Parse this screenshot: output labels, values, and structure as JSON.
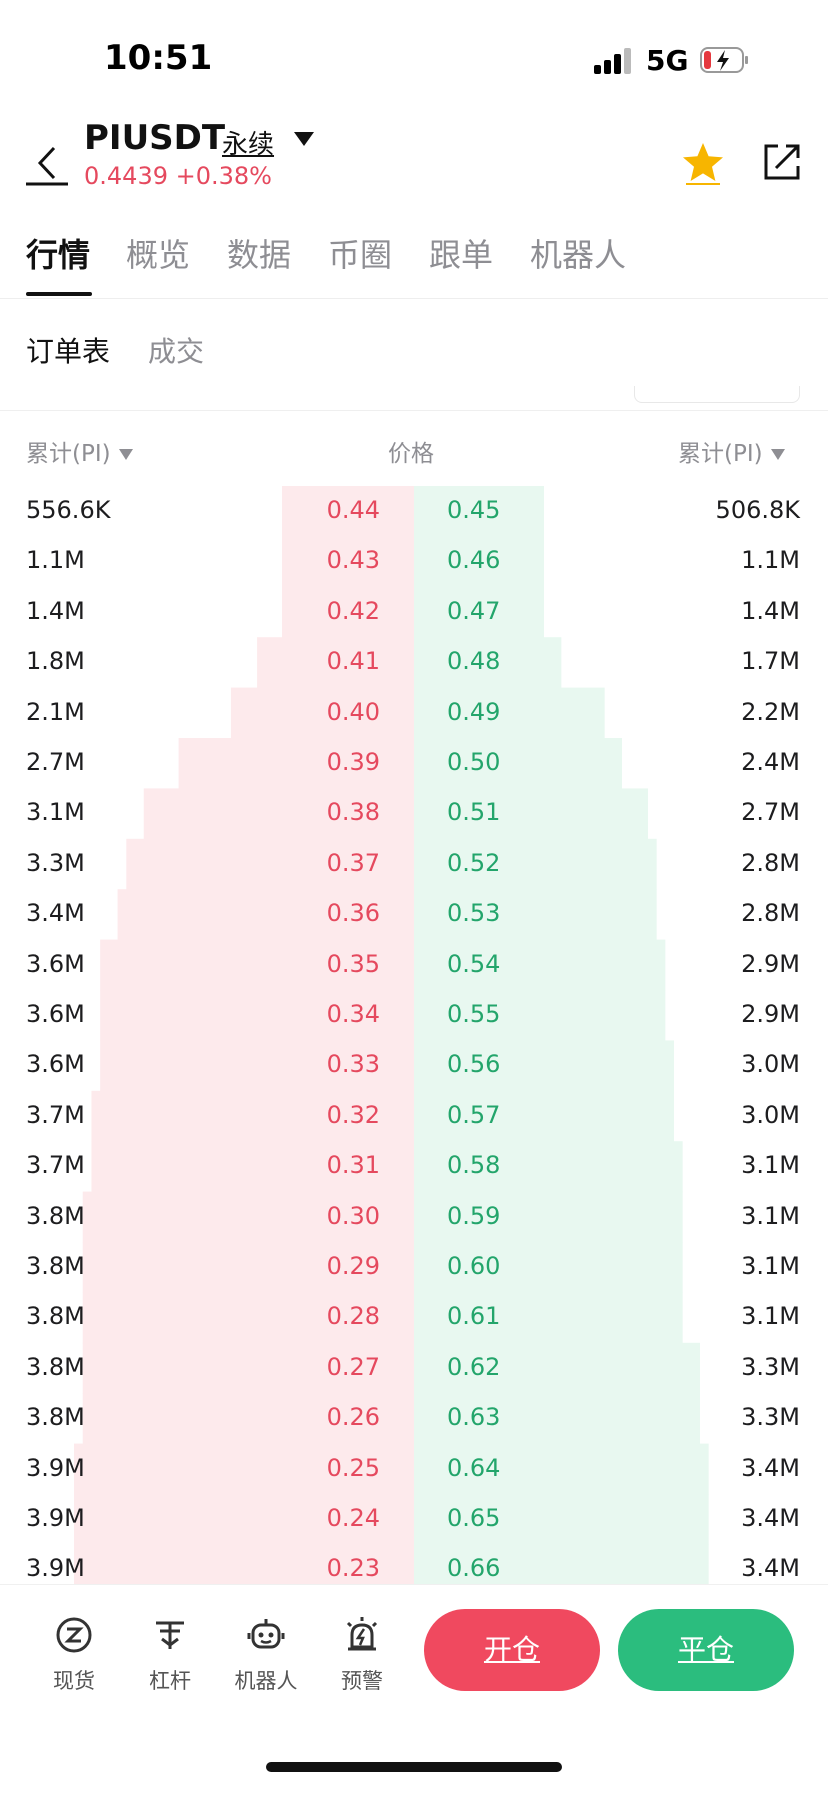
{
  "status_bar": {
    "time": "10:51",
    "network": "5G"
  },
  "header": {
    "symbol": "PIUSDT",
    "contract_type": "永续",
    "last_price": "0.4439",
    "change_pct": "+0.38%"
  },
  "tabs": [
    {
      "label": "行情"
    },
    {
      "label": "概览"
    },
    {
      "label": "数据"
    },
    {
      "label": "币圈"
    },
    {
      "label": "跟单"
    },
    {
      "label": "机器人"
    }
  ],
  "subtabs": [
    {
      "label": "订单表"
    },
    {
      "label": "成交"
    }
  ],
  "orderbook": {
    "col_bid_cum": "累计(PI)",
    "col_price": "价格",
    "col_ask_cum": "累计(PI)",
    "colors": {
      "bid": "#e5495e",
      "ask": "#23a56b",
      "bid_fill": "#fdeaec",
      "ask_fill": "#e8f8f0"
    },
    "rows": [
      {
        "bid_cum": "556.6K",
        "bid_price": "0.44",
        "ask_price": "0.45",
        "ask_cum": "506.8K",
        "bid_depth": 556.6,
        "ask_depth": 506.8
      },
      {
        "bid_cum": "1.1M",
        "bid_price": "0.43",
        "ask_price": "0.46",
        "ask_cum": "1.1M",
        "bid_depth": 1100,
        "ask_depth": 1100
      },
      {
        "bid_cum": "1.4M",
        "bid_price": "0.42",
        "ask_price": "0.47",
        "ask_cum": "1.4M",
        "bid_depth": 1400,
        "ask_depth": 1400
      },
      {
        "bid_cum": "1.8M",
        "bid_price": "0.41",
        "ask_price": "0.48",
        "ask_cum": "1.7M",
        "bid_depth": 1800,
        "ask_depth": 1700
      },
      {
        "bid_cum": "2.1M",
        "bid_price": "0.40",
        "ask_price": "0.49",
        "ask_cum": "2.2M",
        "bid_depth": 2100,
        "ask_depth": 2200
      },
      {
        "bid_cum": "2.7M",
        "bid_price": "0.39",
        "ask_price": "0.50",
        "ask_cum": "2.4M",
        "bid_depth": 2700,
        "ask_depth": 2400
      },
      {
        "bid_cum": "3.1M",
        "bid_price": "0.38",
        "ask_price": "0.51",
        "ask_cum": "2.7M",
        "bid_depth": 3100,
        "ask_depth": 2700
      },
      {
        "bid_cum": "3.3M",
        "bid_price": "0.37",
        "ask_price": "0.52",
        "ask_cum": "2.8M",
        "bid_depth": 3300,
        "ask_depth": 2800
      },
      {
        "bid_cum": "3.4M",
        "bid_price": "0.36",
        "ask_price": "0.53",
        "ask_cum": "2.8M",
        "bid_depth": 3400,
        "ask_depth": 2800
      },
      {
        "bid_cum": "3.6M",
        "bid_price": "0.35",
        "ask_price": "0.54",
        "ask_cum": "2.9M",
        "bid_depth": 3600,
        "ask_depth": 2900
      },
      {
        "bid_cum": "3.6M",
        "bid_price": "0.34",
        "ask_price": "0.55",
        "ask_cum": "2.9M",
        "bid_depth": 3600,
        "ask_depth": 2900
      },
      {
        "bid_cum": "3.6M",
        "bid_price": "0.33",
        "ask_price": "0.56",
        "ask_cum": "3.0M",
        "bid_depth": 3600,
        "ask_depth": 3000
      },
      {
        "bid_cum": "3.7M",
        "bid_price": "0.32",
        "ask_price": "0.57",
        "ask_cum": "3.0M",
        "bid_depth": 3700,
        "ask_depth": 3000
      },
      {
        "bid_cum": "3.7M",
        "bid_price": "0.31",
        "ask_price": "0.58",
        "ask_cum": "3.1M",
        "bid_depth": 3700,
        "ask_depth": 3100
      },
      {
        "bid_cum": "3.8M",
        "bid_price": "0.30",
        "ask_price": "0.59",
        "ask_cum": "3.1M",
        "bid_depth": 3800,
        "ask_depth": 3100
      },
      {
        "bid_cum": "3.8M",
        "bid_price": "0.29",
        "ask_price": "0.60",
        "ask_cum": "3.1M",
        "bid_depth": 3800,
        "ask_depth": 3100
      },
      {
        "bid_cum": "3.8M",
        "bid_price": "0.28",
        "ask_price": "0.61",
        "ask_cum": "3.1M",
        "bid_depth": 3800,
        "ask_depth": 3100
      },
      {
        "bid_cum": "3.8M",
        "bid_price": "0.27",
        "ask_price": "0.62",
        "ask_cum": "3.3M",
        "bid_depth": 3800,
        "ask_depth": 3300
      },
      {
        "bid_cum": "3.8M",
        "bid_price": "0.26",
        "ask_price": "0.63",
        "ask_cum": "3.3M",
        "bid_depth": 3800,
        "ask_depth": 3300
      },
      {
        "bid_cum": "3.9M",
        "bid_price": "0.25",
        "ask_price": "0.64",
        "ask_cum": "3.4M",
        "bid_depth": 3900,
        "ask_depth": 3400
      },
      {
        "bid_cum": "3.9M",
        "bid_price": "0.24",
        "ask_price": "0.65",
        "ask_cum": "3.4M",
        "bid_depth": 3900,
        "ask_depth": 3400
      },
      {
        "bid_cum": "3.9M",
        "bid_price": "0.23",
        "ask_price": "0.66",
        "ask_cum": "3.4M",
        "bid_depth": 3900,
        "ask_depth": 3400
      }
    ]
  },
  "bottom_bar": {
    "tools": [
      {
        "label": "现货",
        "icon": "spot-icon"
      },
      {
        "label": "杠杆",
        "icon": "margin-icon"
      },
      {
        "label": "机器人",
        "icon": "robot-icon"
      },
      {
        "label": "预警",
        "icon": "alert-icon"
      }
    ],
    "open_label": "开仓",
    "close_label": "平仓"
  }
}
